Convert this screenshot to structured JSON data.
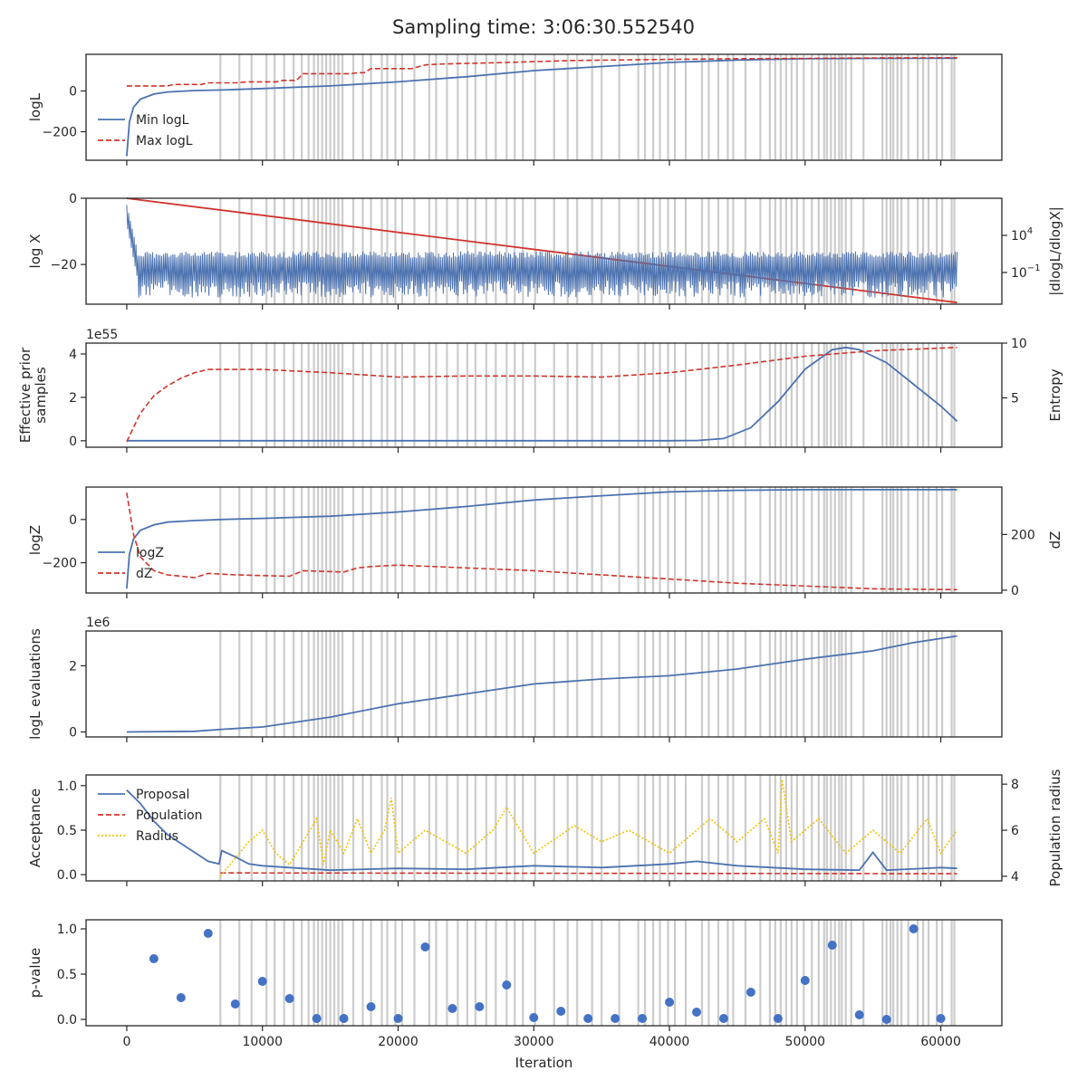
{
  "figure": {
    "title": "Sampling time: 3:06:30.552540"
  },
  "colors": {
    "blue": "#4c72b0",
    "red": "#d0342c",
    "yellow": "#f2c200",
    "grey_lines": "#cccccc",
    "dot": "#4472c4"
  },
  "insertion_lines": [
    6900,
    8300,
    9200,
    10300,
    10900,
    11600,
    12300,
    12900,
    13400,
    13800,
    14100,
    14400,
    14700,
    15000,
    15300,
    15600,
    15900,
    16700,
    17400,
    18000,
    18800,
    19200,
    19800,
    20300,
    21200,
    22300,
    22800,
    23600,
    24400,
    25100,
    25700,
    26500,
    27200,
    28000,
    28600,
    29200,
    30100,
    31500,
    32500,
    33200,
    34300,
    35000,
    36300,
    37700,
    38200,
    38800,
    39300,
    39900,
    40400,
    41200,
    42400,
    42900,
    43600,
    44300,
    44700,
    45600,
    46700,
    47400,
    47800,
    48200,
    48600,
    49000,
    49400,
    49900,
    50500,
    51000,
    51400,
    51600,
    51900,
    52200,
    52500,
    52700,
    53000,
    53400,
    54300,
    55700,
    56000,
    56300,
    56500,
    56800,
    57100,
    57600,
    58300,
    58700,
    59100,
    59700,
    60100,
    60800,
    61000
  ],
  "chart_data": [
    {
      "type": "line",
      "panel": "logL",
      "title": "Sampling time: 3:06:30.552540",
      "ylabel": "logL",
      "xlim": [
        -3000,
        64500
      ],
      "ylim": [
        -340,
        180
      ],
      "yticks": [
        {
          "v": 0,
          "label": "0"
        },
        {
          "v": -200,
          "label": "−200"
        }
      ],
      "legend": "center-left",
      "series": [
        {
          "name": "Min logL",
          "style": "solid",
          "color": "#4c72b0",
          "x": [
            0,
            200,
            500,
            1000,
            2000,
            3000,
            5000,
            7000,
            10000,
            15000,
            20000,
            25000,
            30000,
            35000,
            40000,
            45000,
            50000,
            55000,
            61200
          ],
          "y": [
            -320,
            -150,
            -80,
            -40,
            -15,
            -5,
            2,
            5,
            12,
            25,
            45,
            70,
            100,
            120,
            140,
            152,
            158,
            160,
            161
          ]
        },
        {
          "name": "Max logL",
          "style": "dashed",
          "color": "#d0342c",
          "x": [
            0,
            3000,
            3500,
            5500,
            6000,
            8000,
            9000,
            11000,
            11500,
            12500,
            13000,
            16500,
            17000,
            17500,
            18000,
            21000,
            22000,
            23000,
            28000,
            33000,
            40000,
            45000,
            50000,
            55000,
            61200
          ],
          "y": [
            25,
            25,
            32,
            32,
            40,
            40,
            45,
            45,
            52,
            52,
            85,
            85,
            90,
            90,
            110,
            110,
            128,
            132,
            140,
            150,
            155,
            158,
            160,
            162,
            163
          ]
        }
      ]
    },
    {
      "type": "line",
      "panel": "log X",
      "ylabel": "log X",
      "ylabel_right": "|dlogL/dlogX|",
      "xlim": [
        -3000,
        64500
      ],
      "ylim": [
        -32,
        0
      ],
      "yticks": [
        {
          "v": 0,
          "label": "0"
        },
        {
          "v": -20,
          "label": "−20"
        }
      ],
      "yticks_right": [
        {
          "label": "10",
          "sup": "4"
        },
        {
          "label": "10",
          "sup": "−1"
        }
      ],
      "series": [
        {
          "name": "log X",
          "style": "solid",
          "color": "#d0342c",
          "x": [
            0,
            61200
          ],
          "y": [
            0,
            -31.5
          ]
        },
        {
          "name": "|dlogL/dlogX|",
          "style": "noisy",
          "color": "#4c72b0",
          "x": [
            0,
            61200
          ],
          "y_band": [
            -16,
            -25
          ]
        }
      ]
    },
    {
      "type": "line",
      "panel": "Effective prior samples",
      "ylabel": "Effective prior\nsamples",
      "ylabel_right": "Entropy",
      "offset_text": "1e55",
      "xlim": [
        -3000,
        64500
      ],
      "ylim": [
        -0.3,
        4.5
      ],
      "ylim_right": [
        0.5,
        10
      ],
      "yticks": [
        {
          "v": 0,
          "label": "0"
        },
        {
          "v": 2,
          "label": "2"
        },
        {
          "v": 4,
          "label": "4"
        }
      ],
      "yticks_right": [
        {
          "v": 5,
          "label": "5"
        },
        {
          "v": 10,
          "label": "10"
        }
      ],
      "series": [
        {
          "name": "Effective prior samples",
          "style": "solid",
          "color": "#4c72b0",
          "x": [
            0,
            40000,
            42000,
            44000,
            46000,
            48000,
            50000,
            52000,
            53000,
            54000,
            56000,
            58000,
            60000,
            61200
          ],
          "y": [
            0,
            0,
            0.01,
            0.1,
            0.6,
            1.8,
            3.3,
            4.2,
            4.3,
            4.2,
            3.6,
            2.6,
            1.6,
            0.9
          ]
        },
        {
          "name": "Entropy",
          "style": "dashed",
          "color": "#d0342c",
          "axis": "right",
          "x": [
            0,
            1000,
            2000,
            3000,
            4000,
            5000,
            6000,
            7000,
            10000,
            15000,
            20000,
            25000,
            30000,
            35000,
            40000,
            45000,
            50000,
            55000,
            61200
          ],
          "y": [
            1.0,
            3.6,
            5.2,
            6.1,
            6.8,
            7.3,
            7.6,
            7.6,
            7.6,
            7.3,
            6.9,
            7.0,
            7.0,
            6.9,
            7.3,
            8.0,
            8.8,
            9.3,
            9.6
          ]
        }
      ]
    },
    {
      "type": "line",
      "panel": "logZ",
      "ylabel": "logZ",
      "ylabel_right": "dZ",
      "xlim": [
        -3000,
        64500
      ],
      "ylim": [
        -340,
        150
      ],
      "ylim_right": [
        -10,
        370
      ],
      "yticks": [
        {
          "v": 0,
          "label": "0"
        },
        {
          "v": -200,
          "label": "−200"
        }
      ],
      "yticks_right": [
        {
          "v": 0,
          "label": "0"
        },
        {
          "v": 200,
          "label": "200"
        }
      ],
      "legend": "lower-left",
      "series": [
        {
          "name": "logZ",
          "style": "solid",
          "color": "#4c72b0",
          "x": [
            0,
            200,
            500,
            1000,
            2000,
            3000,
            5000,
            7000,
            10000,
            15000,
            20000,
            25000,
            30000,
            35000,
            40000,
            45000,
            50000,
            55000,
            61200
          ],
          "y": [
            -320,
            -160,
            -90,
            -50,
            -25,
            -12,
            -5,
            0,
            5,
            15,
            35,
            60,
            90,
            110,
            128,
            135,
            138,
            138,
            138
          ]
        },
        {
          "name": "dZ",
          "style": "dashed",
          "color": "#d0342c",
          "axis": "right",
          "x": [
            0,
            500,
            1000,
            2000,
            3000,
            4000,
            5000,
            6000,
            8000,
            12000,
            13000,
            16000,
            17000,
            18000,
            20000,
            25000,
            30000,
            35000,
            40000,
            45000,
            50000,
            55000,
            61200
          ],
          "y": [
            350,
            200,
            120,
            70,
            55,
            50,
            45,
            60,
            55,
            50,
            70,
            65,
            80,
            85,
            90,
            80,
            70,
            55,
            40,
            25,
            15,
            5,
            2
          ]
        }
      ]
    },
    {
      "type": "line",
      "panel": "logL evaluations",
      "ylabel": "logL evaluations",
      "offset_text": "1e6",
      "xlim": [
        -3000,
        64500
      ],
      "ylim": [
        -0.15,
        3.05
      ],
      "yticks": [
        {
          "v": 0,
          "label": "0"
        },
        {
          "v": 2,
          "label": "2"
        }
      ],
      "series": [
        {
          "name": "logL evaluations",
          "style": "solid",
          "color": "#4c72b0",
          "x": [
            0,
            5000,
            7000,
            10000,
            15000,
            20000,
            25000,
            30000,
            35000,
            40000,
            45000,
            50000,
            55000,
            58000,
            61200
          ],
          "y": [
            0.0,
            0.02,
            0.08,
            0.15,
            0.45,
            0.85,
            1.15,
            1.45,
            1.6,
            1.7,
            1.9,
            2.2,
            2.45,
            2.7,
            2.9
          ]
        }
      ]
    },
    {
      "type": "line",
      "panel": "Acceptance",
      "ylabel": "Acceptance",
      "ylabel_right": "Population radius",
      "xlim": [
        -3000,
        64500
      ],
      "ylim": [
        -0.07,
        1.12
      ],
      "ylim_right": [
        3.8,
        8.4
      ],
      "yticks": [
        {
          "v": 0.0,
          "label": "0.0"
        },
        {
          "v": 0.5,
          "label": "0.5"
        },
        {
          "v": 1.0,
          "label": "1.0"
        }
      ],
      "yticks_right": [
        {
          "v": 4,
          "label": "4"
        },
        {
          "v": 6,
          "label": "6"
        },
        {
          "v": 8,
          "label": "8"
        }
      ],
      "legend": "upper-left",
      "series": [
        {
          "name": "Proposal",
          "style": "solid",
          "color": "#4c72b0",
          "x": [
            0,
            1000,
            2000,
            3000,
            4000,
            5000,
            6000,
            6800,
            7000,
            8000,
            9000,
            10000,
            12000,
            15000,
            20000,
            25000,
            30000,
            35000,
            40000,
            42000,
            45000,
            50000,
            54000,
            55000,
            56000,
            60000,
            61200
          ],
          "y": [
            0.95,
            0.8,
            0.6,
            0.45,
            0.35,
            0.25,
            0.15,
            0.12,
            0.27,
            0.2,
            0.12,
            0.1,
            0.08,
            0.05,
            0.07,
            0.06,
            0.1,
            0.08,
            0.12,
            0.15,
            0.1,
            0.06,
            0.05,
            0.25,
            0.05,
            0.08,
            0.07
          ]
        },
        {
          "name": "Population",
          "style": "dashed",
          "color": "#d0342c",
          "x": [
            6900,
            61200
          ],
          "y": [
            0.02,
            0.01
          ]
        },
        {
          "name": "Radius",
          "style": "dotted",
          "color": "#f2c200",
          "axis": "right",
          "x": [
            6900,
            9000,
            10000,
            11000,
            12000,
            13000,
            14000,
            14500,
            15000,
            16000,
            17000,
            18000,
            19000,
            19500,
            20000,
            22000,
            25000,
            27000,
            28000,
            30000,
            33000,
            35000,
            37000,
            40000,
            43000,
            45000,
            47000,
            48000,
            48300,
            49000,
            51000,
            53000,
            55000,
            57000,
            59000,
            60000,
            61200
          ],
          "y": [
            4.0,
            5.5,
            6.0,
            5.0,
            4.5,
            5.5,
            6.5,
            4.5,
            6.0,
            5.0,
            6.5,
            5.0,
            6.0,
            7.4,
            5.0,
            6.0,
            5.0,
            6.0,
            7.0,
            5.0,
            6.2,
            5.5,
            6.0,
            5.0,
            6.5,
            5.5,
            6.5,
            5.0,
            8.2,
            5.5,
            6.5,
            5.0,
            6.0,
            5.0,
            6.5,
            5.0,
            6.0
          ]
        }
      ]
    },
    {
      "type": "scatter",
      "panel": "p-value",
      "ylabel": "p-value",
      "xlabel": "Iteration",
      "xlim": [
        -3000,
        64500
      ],
      "ylim": [
        -0.07,
        1.1
      ],
      "yticks": [
        {
          "v": 0.0,
          "label": "0.0"
        },
        {
          "v": 0.5,
          "label": "0.5"
        },
        {
          "v": 1.0,
          "label": "1.0"
        }
      ],
      "xticks": [
        {
          "v": 0,
          "label": "0"
        },
        {
          "v": 10000,
          "label": "10000"
        },
        {
          "v": 20000,
          "label": "20000"
        },
        {
          "v": 30000,
          "label": "30000"
        },
        {
          "v": 40000,
          "label": "40000"
        },
        {
          "v": 50000,
          "label": "50000"
        },
        {
          "v": 60000,
          "label": "60000"
        }
      ],
      "series": [
        {
          "name": "p-value",
          "color": "#4472c4",
          "x": [
            2000,
            4000,
            6000,
            8000,
            10000,
            12000,
            14000,
            16000,
            18000,
            20000,
            22000,
            24000,
            26000,
            28000,
            30000,
            32000,
            34000,
            36000,
            38000,
            40000,
            42000,
            44000,
            46000,
            48000,
            50000,
            52000,
            54000,
            56000,
            58000,
            60000
          ],
          "y": [
            0.67,
            0.24,
            0.95,
            0.17,
            0.42,
            0.23,
            0.01,
            0.01,
            0.14,
            0.01,
            0.8,
            0.12,
            0.14,
            0.38,
            0.02,
            0.09,
            0.01,
            0.01,
            0.01,
            0.19,
            0.08,
            0.01,
            0.3,
            0.01,
            0.43,
            0.82,
            0.05,
            0.0,
            1.0,
            0.01
          ]
        }
      ]
    }
  ]
}
